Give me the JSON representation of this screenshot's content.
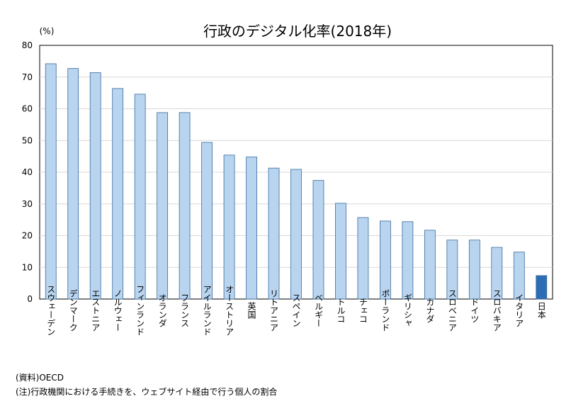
{
  "chart_data": {
    "type": "bar",
    "title": "行政のデジタル化率(2018年)",
    "ylabel": "(%)",
    "xlabel": "",
    "ylim": [
      0,
      80
    ],
    "yticks": [
      0,
      10,
      20,
      30,
      40,
      50,
      60,
      70,
      80
    ],
    "grid": true,
    "categories": [
      "スウェーデン",
      "デンマーク",
      "エストニア",
      "ノルウェー",
      "フィンランド",
      "オランダ",
      "フランス",
      "アイルランド",
      "オーストリア",
      "英国",
      "リトアニア",
      "スペイン",
      "ベルギー",
      "トルコ",
      "チェコ",
      "ポーランド",
      "ギリシャ",
      "カナダ",
      "スロベニア",
      "ドイツ",
      "スロバキア",
      "イタリア",
      "日本"
    ],
    "values": [
      74.2,
      72.7,
      71.4,
      66.4,
      64.6,
      58.8,
      58.8,
      49.4,
      45.4,
      44.8,
      41.3,
      40.9,
      37.4,
      30.2,
      25.7,
      24.6,
      24.4,
      21.7,
      18.6,
      18.6,
      16.3,
      14.8,
      7.4
    ],
    "highlight_category": "日本",
    "colors": {
      "bar": "#b9d4ef",
      "bar_stroke": "#3a6c9e",
      "highlight": "#2e6db4",
      "grid": "#d9d9d9",
      "axis": "#000000"
    }
  },
  "footnotes": {
    "source": "(資料)OECD",
    "note": "(注)行政機関における手続きを、ウェブサイト経由で行う個人の割合"
  }
}
